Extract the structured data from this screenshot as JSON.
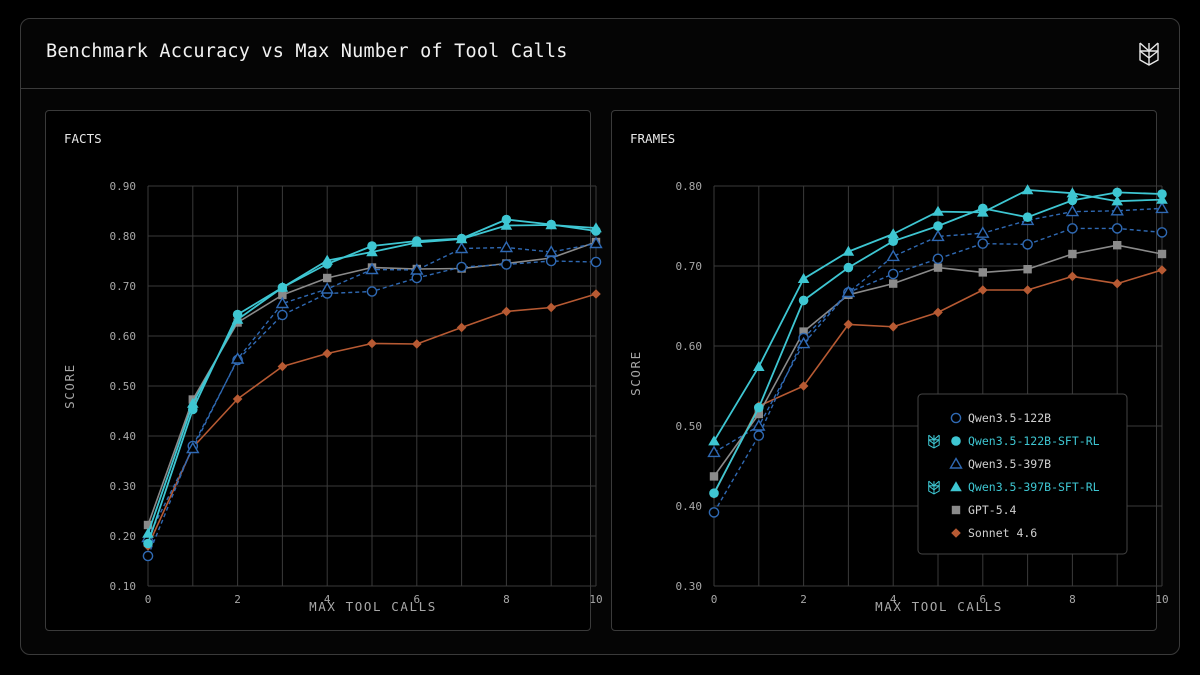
{
  "title": "Benchmark Accuracy vs Max Number of Tool Calls",
  "colors": {
    "qwen_blue": "#2f69b3",
    "qwen_cyan": "#3ec6d2",
    "gpt": "#8a8a8a",
    "sonnet": "#b75a33"
  },
  "legend": {
    "items": [
      {
        "label": "Qwen3.5-122B",
        "marker": "circle-open",
        "color": "#2f69b3",
        "label_color": "#cfcfcf",
        "icon": ""
      },
      {
        "label": "Qwen3.5-122B-SFT-RL",
        "marker": "circle-filled",
        "color": "#3ec6d2",
        "label_color": "#3ec6d2",
        "icon": "brand-logo-icon"
      },
      {
        "label": "Qwen3.5-397B",
        "marker": "triangle-open",
        "color": "#2f69b3",
        "label_color": "#cfcfcf",
        "icon": ""
      },
      {
        "label": "Qwen3.5-397B-SFT-RL",
        "marker": "triangle-filled",
        "color": "#3ec6d2",
        "label_color": "#3ec6d2",
        "icon": "brand-logo-icon"
      },
      {
        "label": "GPT-5.4",
        "marker": "square",
        "color": "#8a8a8a",
        "label_color": "#cfcfcf",
        "icon": ""
      },
      {
        "label": "Sonnet 4.6",
        "marker": "diamond",
        "color": "#b75a33",
        "label_color": "#cfcfcf",
        "icon": ""
      }
    ]
  },
  "chart_data": [
    {
      "type": "line",
      "title": "FACTS",
      "xlabel": "MAX TOOL CALLS",
      "ylabel": "SCORE",
      "xlim": [
        0,
        10
      ],
      "ylim": [
        0.1,
        0.9
      ],
      "x_ticks": [
        0,
        2,
        4,
        6,
        8,
        10
      ],
      "y_ticks": [
        "0.10",
        "0.20",
        "0.30",
        "0.40",
        "0.50",
        "0.60",
        "0.70",
        "0.80",
        "0.90"
      ],
      "grid": true,
      "x": [
        0,
        1,
        2,
        3,
        4,
        5,
        6,
        7,
        8,
        9,
        10
      ],
      "series": [
        {
          "name": "Sonnet 4.6",
          "values": [
            0.18,
            0.377,
            0.474,
            0.539,
            0.565,
            0.585,
            0.584,
            0.617,
            0.649,
            0.657,
            0.684
          ]
        },
        {
          "name": "GPT-5.4",
          "values": [
            0.222,
            0.473,
            0.627,
            0.682,
            0.716,
            0.737,
            0.734,
            0.735,
            0.745,
            0.756,
            0.788
          ]
        },
        {
          "name": "Qwen3.5-122B",
          "values": [
            0.16,
            0.38,
            0.552,
            0.642,
            0.685,
            0.689,
            0.716,
            0.738,
            0.743,
            0.75,
            0.748
          ]
        },
        {
          "name": "Qwen3.5-397B",
          "values": [
            0.197,
            0.375,
            0.554,
            0.665,
            0.694,
            0.733,
            0.732,
            0.775,
            0.777,
            0.768,
            0.785
          ]
        },
        {
          "name": "Qwen3.5-122B-SFT-RL",
          "values": [
            0.185,
            0.453,
            0.643,
            0.697,
            0.744,
            0.78,
            0.79,
            0.795,
            0.833,
            0.823,
            0.81
          ]
        },
        {
          "name": "Qwen3.5-397B-SFT-RL",
          "values": [
            0.205,
            0.465,
            0.633,
            0.697,
            0.751,
            0.768,
            0.787,
            0.794,
            0.821,
            0.822,
            0.816
          ]
        }
      ]
    },
    {
      "type": "line",
      "title": "FRAMES",
      "xlabel": "MAX TOOL CALLS",
      "ylabel": "SCORE",
      "xlim": [
        0,
        10
      ],
      "ylim": [
        0.3,
        0.8
      ],
      "x_ticks": [
        0,
        2,
        4,
        6,
        8,
        10
      ],
      "y_ticks": [
        "0.30",
        "0.40",
        "0.50",
        "0.60",
        "0.70",
        "0.80"
      ],
      "grid": true,
      "legend_position": "bottom-right",
      "x": [
        0,
        1,
        2,
        3,
        4,
        5,
        6,
        7,
        8,
        9,
        10
      ],
      "series": [
        {
          "name": "Sonnet 4.6",
          "values": [
            0.415,
            0.525,
            0.55,
            0.627,
            0.624,
            0.642,
            0.67,
            0.67,
            0.687,
            0.678,
            0.695
          ]
        },
        {
          "name": "GPT-5.4",
          "values": [
            0.437,
            0.515,
            0.618,
            0.664,
            0.678,
            0.698,
            0.692,
            0.696,
            0.715,
            0.726,
            0.715
          ]
        },
        {
          "name": "Qwen3.5-122B",
          "values": [
            0.392,
            0.488,
            0.61,
            0.667,
            0.69,
            0.709,
            0.728,
            0.727,
            0.747,
            0.747,
            0.742
          ]
        },
        {
          "name": "Qwen3.5-397B",
          "values": [
            0.467,
            0.5,
            0.603,
            0.667,
            0.712,
            0.737,
            0.741,
            0.757,
            0.768,
            0.769,
            0.772
          ]
        },
        {
          "name": "Qwen3.5-122B-SFT-RL",
          "values": [
            0.416,
            0.523,
            0.657,
            0.698,
            0.731,
            0.75,
            0.772,
            0.761,
            0.782,
            0.792,
            0.79
          ]
        },
        {
          "name": "Qwen3.5-397B-SFT-RL",
          "values": [
            0.481,
            0.574,
            0.684,
            0.718,
            0.74,
            0.768,
            0.767,
            0.795,
            0.791,
            0.781,
            0.783
          ]
        }
      ]
    }
  ]
}
